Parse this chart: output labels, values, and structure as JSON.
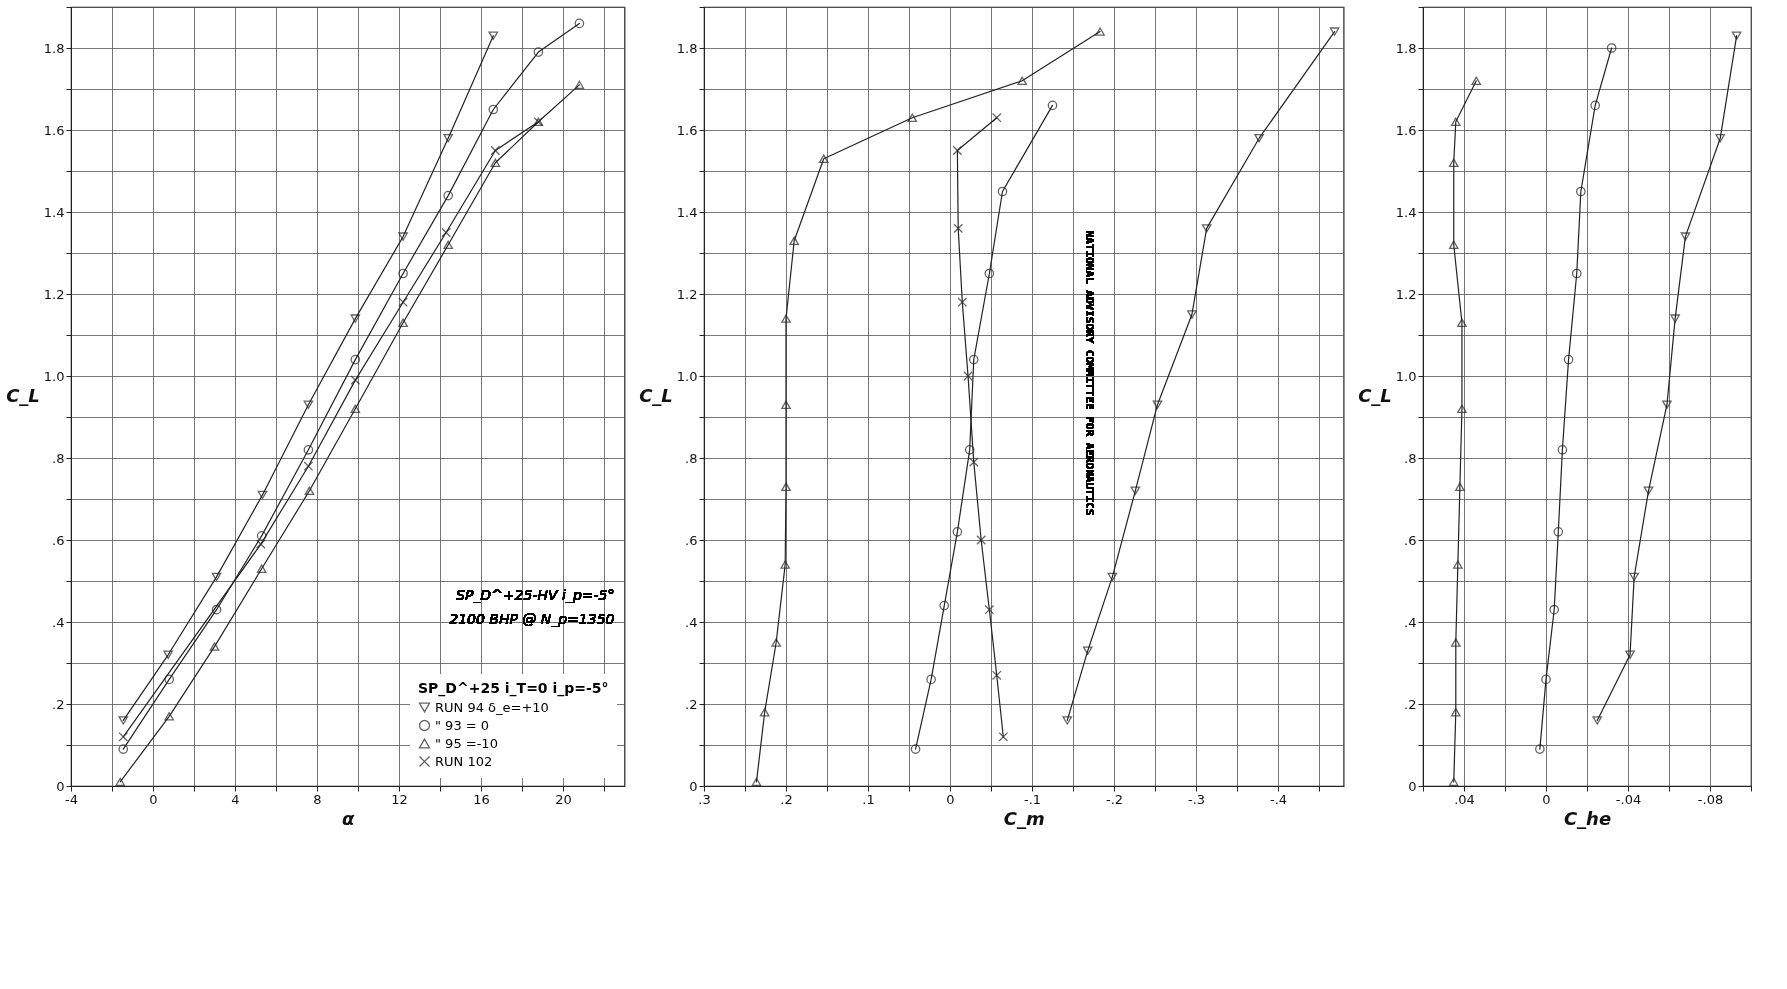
{
  "chart_data": [
    {
      "type": "line",
      "xlabel": "α",
      "ylabel": "C_L",
      "legend": "bottom right",
      "legend_title": "SP_D^+25 i_T=0 i_p=-5°",
      "grid": true,
      "line_style": "solid",
      "xlim": [
        -4,
        23
      ],
      "xticks": [
        -4,
        {
          "value": -2,
          "label": null
        },
        0,
        {
          "value": 2,
          "label": null
        },
        4,
        {
          "value": 6,
          "label": null
        },
        8,
        {
          "value": 10,
          "label": null
        },
        12,
        {
          "value": 14,
          "label": null
        },
        16,
        {
          "value": 18,
          "label": null
        },
        20,
        {
          "value": 22,
          "label": null
        }
      ],
      "ylim": [
        0,
        1.9
      ],
      "yticks": [
        0,
        {
          "value": 0.1,
          "label": null
        },
        {
          "value": 0.2,
          "label": ".2"
        },
        {
          "value": 0.3,
          "label": null
        },
        {
          "value": 0.4,
          "label": ".4"
        },
        {
          "value": 0.5,
          "label": null
        },
        {
          "value": 0.6,
          "label": ".6"
        },
        {
          "value": 0.7,
          "label": null
        },
        {
          "value": 0.8,
          "label": ".8"
        },
        {
          "value": 0.9,
          "label": null
        },
        {
          "value": 1.0,
          "label": "1.0"
        },
        {
          "value": 1.1,
          "label": null
        },
        {
          "value": 1.2,
          "label": "1.2"
        },
        {
          "value": 1.3,
          "label": null
        },
        {
          "value": 1.4,
          "label": "1.4"
        },
        {
          "value": 1.5,
          "label": null
        },
        {
          "value": 1.6,
          "label": "1.6"
        },
        {
          "value": 1.7,
          "label": null
        },
        {
          "value": 1.8,
          "label": "1.8"
        },
        {
          "value": 1.9,
          "label": null
        }
      ],
      "annotations": [
        "SP_D^+25-HV i_p=-5°",
        "2100 BHP @ N_p=1350"
      ],
      "series": [
        {
          "name": "RUN 94 δ_e=+10",
          "color": "#222222",
          "marker": "triangle-down",
          "x": [
            -1.45,
            0.74,
            3.1,
            5.34,
            7.58,
            9.87,
            12.2,
            14.4,
            16.6
          ],
          "values": [
            0.16,
            0.32,
            0.51,
            0.71,
            0.93,
            1.14,
            1.34,
            1.58,
            1.83
          ]
        },
        {
          "name": "\" 93 = 0",
          "color": "#222222",
          "marker": "circle",
          "x": [
            -1.45,
            0.79,
            3.1,
            5.3,
            7.58,
            9.87,
            12.2,
            14.4,
            16.6,
            18.8,
            20.8
          ],
          "values": [
            0.09,
            0.26,
            0.43,
            0.61,
            0.82,
            1.04,
            1.25,
            1.44,
            1.65,
            1.79,
            1.86
          ]
        },
        {
          "name": "\" 95 =-10",
          "color": "#222222",
          "marker": "triangle",
          "x": [
            -1.6,
            0.79,
            3.0,
            5.3,
            7.63,
            9.87,
            12.2,
            14.4,
            16.7,
            18.8,
            20.8
          ],
          "values": [
            0.01,
            0.17,
            0.34,
            0.53,
            0.72,
            0.92,
            1.13,
            1.32,
            1.52,
            1.62,
            1.71
          ]
        },
        {
          "name": "RUN 102",
          "color": "#222222",
          "marker": "cross",
          "x": [
            -1.45,
            5.26,
            7.58,
            9.87,
            12.2,
            14.3,
            16.7,
            18.8
          ],
          "values": [
            0.12,
            0.59,
            0.78,
            0.99,
            1.18,
            1.35,
            1.55,
            1.62
          ]
        }
      ]
    },
    {
      "type": "line",
      "xlabel": "C_m",
      "ylabel": "C_L",
      "grid": true,
      "line_style": "solid",
      "xlim": [
        0.3,
        -0.48
      ],
      "xticks": [
        {
          "value": 0.3,
          "label": ".3"
        },
        {
          "value": 0.25,
          "label": null
        },
        {
          "value": 0.2,
          "label": ".2"
        },
        {
          "value": 0.15,
          "label": null
        },
        {
          "value": 0.1,
          "label": ".1"
        },
        {
          "value": 0.05,
          "label": null
        },
        0,
        {
          "value": -0.05,
          "label": null
        },
        {
          "value": -0.1,
          "label": "-.1"
        },
        {
          "value": -0.15,
          "label": null
        },
        {
          "value": -0.2,
          "label": "-.2"
        },
        {
          "value": -0.25,
          "label": null
        },
        {
          "value": -0.3,
          "label": "-.3"
        },
        {
          "value": -0.35,
          "label": null
        },
        {
          "value": -0.4,
          "label": "-.4"
        },
        {
          "value": -0.45,
          "label": null
        }
      ],
      "ylim": [
        0,
        1.9
      ],
      "yticks": [
        0,
        {
          "value": 0.1,
          "label": null
        },
        {
          "value": 0.2,
          "label": ".2"
        },
        {
          "value": 0.3,
          "label": null
        },
        {
          "value": 0.4,
          "label": ".4"
        },
        {
          "value": 0.5,
          "label": null
        },
        {
          "value": 0.6,
          "label": ".6"
        },
        {
          "value": 0.7,
          "label": null
        },
        {
          "value": 0.8,
          "label": ".8"
        },
        {
          "value": 0.9,
          "label": null
        },
        {
          "value": 1.0,
          "label": "1.0"
        },
        {
          "value": 1.1,
          "label": null
        },
        {
          "value": 1.2,
          "label": "1.2"
        },
        {
          "value": 1.3,
          "label": null
        },
        {
          "value": 1.4,
          "label": "1.4"
        },
        {
          "value": 1.5,
          "label": null
        },
        {
          "value": 1.6,
          "label": "1.6"
        },
        {
          "value": 1.7,
          "label": null
        },
        {
          "value": 1.8,
          "label": "1.8"
        },
        {
          "value": 1.9,
          "label": null
        }
      ],
      "annotations": [
        "NATIONAL ADVISORY COMMITTEE FOR AERONAUTICS"
      ],
      "series": [
        {
          "color": "#222222",
          "marker": "triangle-down",
          "x": [
            -0.143,
            -0.168,
            -0.198,
            -0.226,
            -0.253,
            -0.295,
            -0.313,
            -0.377,
            -0.469
          ],
          "values": [
            0.16,
            0.33,
            0.51,
            0.72,
            0.93,
            1.15,
            1.36,
            1.58,
            1.84
          ]
        },
        {
          "color": "#222222",
          "marker": "circle",
          "x": [
            0.042,
            0.023,
            0.007,
            -0.009,
            -0.024,
            -0.029,
            -0.048,
            -0.064,
            -0.125
          ],
          "values": [
            0.09,
            0.26,
            0.44,
            0.62,
            0.82,
            1.04,
            1.25,
            1.45,
            1.66
          ]
        },
        {
          "color": "#222222",
          "marker": "triangle",
          "x": [
            0.236,
            0.226,
            0.212,
            0.201,
            0.2,
            0.2,
            0.2,
            0.19,
            0.154,
            0.046,
            -0.088,
            -0.183
          ],
          "values": [
            0.01,
            0.18,
            0.35,
            0.54,
            0.73,
            0.93,
            1.14,
            1.33,
            1.53,
            1.63,
            1.72,
            1.84
          ]
        },
        {
          "color": "#222222",
          "marker": "cross",
          "x": [
            -0.065,
            -0.057,
            -0.048,
            -0.038,
            -0.029,
            -0.022,
            -0.015,
            -0.01,
            -0.009,
            -0.057
          ],
          "values": [
            0.12,
            0.27,
            0.43,
            0.6,
            0.79,
            1.0,
            1.18,
            1.36,
            1.55,
            1.63
          ]
        }
      ]
    },
    {
      "type": "line",
      "xlabel": "C_he",
      "ylabel": "C_L",
      "grid": true,
      "line_style": "solid",
      "xlim": [
        0.06,
        -0.1
      ],
      "xticks": [
        {
          "value": 0.06,
          "label": null
        },
        {
          "value": 0.04,
          "label": ".04"
        },
        {
          "value": 0.02,
          "label": null
        },
        0,
        {
          "value": -0.02,
          "label": null
        },
        {
          "value": -0.04,
          "label": "-.04"
        },
        {
          "value": -0.06,
          "label": null
        },
        {
          "value": -0.08,
          "label": "-.08"
        },
        {
          "value": -0.1,
          "label": null
        }
      ],
      "ylim": [
        0,
        1.9
      ],
      "yticks": [
        0,
        {
          "value": 0.1,
          "label": null
        },
        {
          "value": 0.2,
          "label": ".2"
        },
        {
          "value": 0.3,
          "label": null
        },
        {
          "value": 0.4,
          "label": ".4"
        },
        {
          "value": 0.5,
          "label": null
        },
        {
          "value": 0.6,
          "label": ".6"
        },
        {
          "value": 0.7,
          "label": null
        },
        {
          "value": 0.8,
          "label": ".8"
        },
        {
          "value": 0.9,
          "label": null
        },
        {
          "value": 1.0,
          "label": "1.0"
        },
        {
          "value": 1.1,
          "label": null
        },
        {
          "value": 1.2,
          "label": "1.2"
        },
        {
          "value": 1.3,
          "label": null
        },
        {
          "value": 1.4,
          "label": "1.4"
        },
        {
          "value": 1.5,
          "label": null
        },
        {
          "value": 1.6,
          "label": "1.6"
        },
        {
          "value": 1.7,
          "label": null
        },
        {
          "value": 1.8,
          "label": "1.8"
        },
        {
          "value": 1.9,
          "label": null
        }
      ],
      "series": [
        {
          "color": "#222222",
          "marker": "triangle-down",
          "x": [
            -0.025,
            -0.041,
            -0.043,
            -0.05,
            -0.059,
            -0.063,
            -0.068,
            -0.085,
            -0.093
          ],
          "values": [
            0.16,
            0.32,
            0.51,
            0.72,
            0.93,
            1.14,
            1.34,
            1.58,
            1.83
          ]
        },
        {
          "color": "#222222",
          "marker": "circle",
          "x": [
            0.003,
            0.0,
            -0.004,
            -0.006,
            -0.008,
            -0.011,
            -0.015,
            -0.017,
            -0.024,
            -0.032
          ],
          "values": [
            0.09,
            0.26,
            0.43,
            0.62,
            0.82,
            1.04,
            1.25,
            1.45,
            1.66,
            1.8
          ]
        },
        {
          "color": "#222222",
          "marker": "triangle",
          "x": [
            0.045,
            0.044,
            0.044,
            0.043,
            0.042,
            0.041,
            0.041,
            0.045,
            0.045,
            0.044,
            0.034
          ],
          "values": [
            0.01,
            0.18,
            0.35,
            0.54,
            0.73,
            0.92,
            1.13,
            1.32,
            1.52,
            1.62,
            1.72
          ]
        }
      ]
    }
  ]
}
